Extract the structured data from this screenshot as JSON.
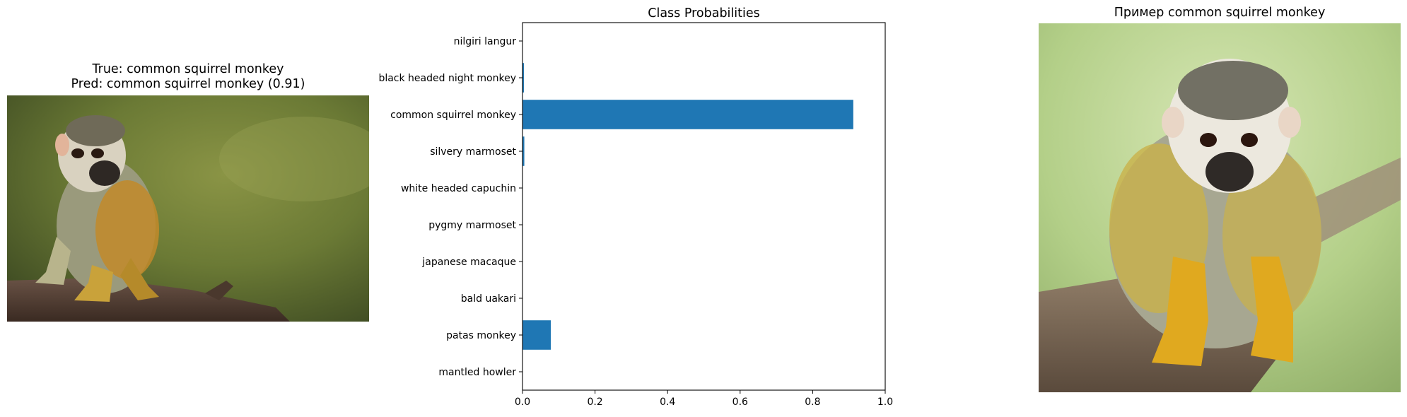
{
  "panel_left": {
    "title_line1": "True: common squirrel monkey",
    "title_line2": "Pred: common squirrel monkey (0.91)",
    "image_subject": "common squirrel monkey photo"
  },
  "panel_right": {
    "title": "Пример common squirrel monkey",
    "image_subject": "common squirrel monkey photo"
  },
  "chart_data": {
    "type": "bar",
    "orientation": "horizontal",
    "title": "Class Probabilities",
    "xlabel": "",
    "ylabel": "",
    "categories": [
      "nilgiri langur",
      "black headed night monkey",
      "common squirrel monkey",
      "silvery marmoset",
      "white headed capuchin",
      "pygmy marmoset",
      "japanese macaque",
      "bald uakari",
      "patas monkey",
      "mantled howler"
    ],
    "values": [
      0.0005,
      0.004,
      0.912,
      0.005,
      0.001,
      0.001,
      0.0005,
      0.0005,
      0.078,
      0.0005
    ],
    "xlim": [
      0,
      1.0
    ],
    "xticks": [
      "0.0",
      "0.2",
      "0.4",
      "0.6",
      "0.8",
      "1.0"
    ],
    "bar_color": "#1f77b4",
    "grid": false
  }
}
